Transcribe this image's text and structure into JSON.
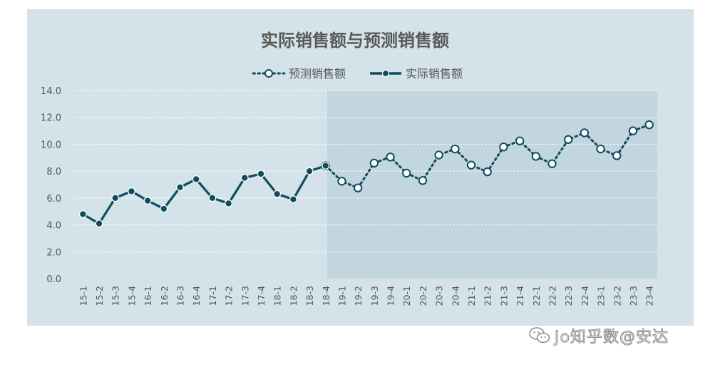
{
  "chart_data": {
    "type": "line",
    "title": "实际销售额与预测销售额",
    "categories": [
      "15-1",
      "15-2",
      "15-3",
      "15-4",
      "16-1",
      "16-2",
      "16-3",
      "16-4",
      "17-1",
      "17-2",
      "17-3",
      "17-4",
      "18-1",
      "18-2",
      "18-3",
      "18-4",
      "19-1",
      "19-2",
      "19-3",
      "19-4",
      "20-1",
      "20-2",
      "20-3",
      "20-4",
      "21-1",
      "21-2",
      "21-3",
      "21-4",
      "22-1",
      "22-2",
      "22-3",
      "22-4",
      "23-1",
      "23-2",
      "23-3",
      "23-4"
    ],
    "yticks": [
      "0.0",
      "2.0",
      "4.0",
      "6.0",
      "8.0",
      "10.0",
      "12.0",
      "14.0"
    ],
    "ylim": [
      0,
      14
    ],
    "grid": true,
    "legend_position": "top",
    "forecast_shaded_from": "18-4",
    "series": [
      {
        "name": "预测销售额",
        "style": "dotted",
        "marker": "hollow-circle",
        "color": "#0f4d5e",
        "values": [
          null,
          null,
          null,
          null,
          null,
          null,
          null,
          null,
          null,
          null,
          null,
          null,
          null,
          null,
          null,
          8.4,
          7.25,
          6.75,
          8.6,
          9.05,
          7.85,
          7.3,
          9.2,
          9.65,
          8.45,
          7.95,
          9.8,
          10.25,
          9.1,
          8.55,
          10.35,
          10.85,
          9.65,
          9.15,
          11.0,
          11.45
        ]
      },
      {
        "name": "实际销售额",
        "style": "solid",
        "marker": "filled-circle",
        "color": "#0f4d5e",
        "values": [
          4.8,
          4.1,
          6.0,
          6.5,
          5.8,
          5.2,
          6.8,
          7.4,
          6.0,
          5.6,
          7.5,
          7.8,
          6.3,
          5.9,
          8.0,
          8.4,
          null,
          null,
          null,
          null,
          null,
          null,
          null,
          null,
          null,
          null,
          null,
          null,
          null,
          null,
          null,
          null,
          null,
          null,
          null,
          null
        ]
      }
    ]
  },
  "watermark": {
    "text": "Jo知乎数@安达"
  },
  "colors": {
    "plot_background": "#d4e3e9",
    "forecast_shade": "#c2d6df",
    "line": "#0f4d5e",
    "text": "#555555"
  },
  "icons": {
    "watermark_logo": "wechat-icon"
  }
}
